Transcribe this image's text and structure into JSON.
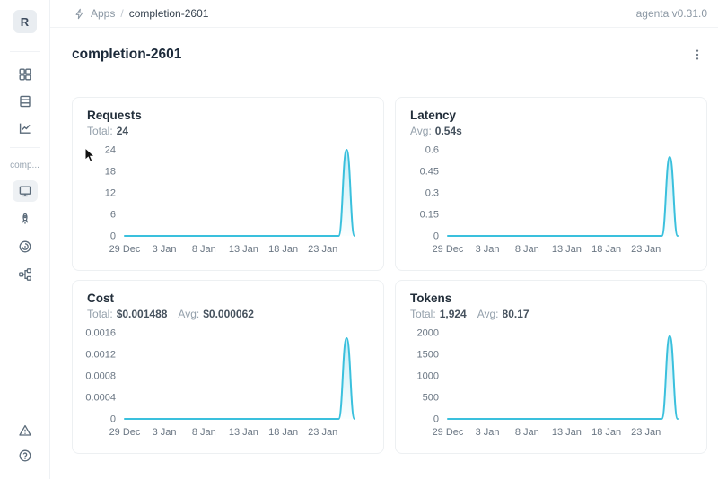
{
  "header": {
    "breadcrumb": {
      "icon": "flash-icon",
      "root": "Apps",
      "separator": "/",
      "current": "completion-2601"
    },
    "version": "agenta v0.31.0"
  },
  "sidebar": {
    "avatar_letter": "R",
    "section_label": "comp...",
    "top_icons": [
      "apps-grid-icon",
      "testsets-table-icon",
      "analytics-chart-icon"
    ],
    "app_icons": [
      "overview-monitor-icon",
      "deployment-rocket-icon",
      "observability-icon",
      "traces-tree-icon"
    ],
    "selected_icon": "overview-monitor-icon",
    "bottom_icons": [
      "alerts-warning-icon",
      "help-question-icon"
    ]
  },
  "page": {
    "title": "completion-2601",
    "menu_icon": "kebab-menu-icon"
  },
  "chart_data": {
    "type": "line",
    "line_color": "#3ac0dd",
    "x": [
      "29 Dec",
      "30 Dec",
      "31 Dec",
      "1 Jan",
      "2 Jan",
      "3 Jan",
      "4 Jan",
      "5 Jan",
      "6 Jan",
      "7 Jan",
      "8 Jan",
      "9 Jan",
      "10 Jan",
      "11 Jan",
      "12 Jan",
      "13 Jan",
      "14 Jan",
      "15 Jan",
      "16 Jan",
      "17 Jan",
      "18 Jan",
      "19 Jan",
      "20 Jan",
      "21 Jan",
      "22 Jan",
      "23 Jan",
      "24 Jan",
      "25 Jan",
      "26 Jan",
      "27 Jan"
    ],
    "xticks": {
      "labels": [
        "29 Dec",
        "3 Jan",
        "8 Jan",
        "13 Jan",
        "18 Jan",
        "23 Jan"
      ],
      "indices": [
        0,
        5,
        10,
        15,
        20,
        25
      ]
    },
    "grid": false,
    "legend": false,
    "charts": [
      {
        "key": "requests",
        "title": "Requests",
        "stats": [
          {
            "label": "Total:",
            "value": "24"
          }
        ],
        "yticks": [
          "0",
          "6",
          "12",
          "18",
          "24"
        ],
        "ylim": [
          0,
          24
        ],
        "values": [
          0,
          0,
          0,
          0,
          0,
          0,
          0,
          0,
          0,
          0,
          0,
          0,
          0,
          0,
          0,
          0,
          0,
          0,
          0,
          0,
          0,
          0,
          0,
          0,
          0,
          0,
          0,
          0,
          24,
          0
        ]
      },
      {
        "key": "latency",
        "title": "Latency",
        "stats": [
          {
            "label": "Avg:",
            "value": "0.54s"
          }
        ],
        "yticks": [
          "0",
          "0.15",
          "0.3",
          "0.45",
          "0.6"
        ],
        "ylim": [
          0,
          0.6
        ],
        "values": [
          0,
          0,
          0,
          0,
          0,
          0,
          0,
          0,
          0,
          0,
          0,
          0,
          0,
          0,
          0,
          0,
          0,
          0,
          0,
          0,
          0,
          0,
          0,
          0,
          0,
          0,
          0,
          0,
          0.55,
          0
        ]
      },
      {
        "key": "cost",
        "title": "Cost",
        "stats": [
          {
            "label": "Total:",
            "value": "$0.001488"
          },
          {
            "label": "Avg:",
            "value": "$0.000062"
          }
        ],
        "yticks": [
          "0",
          "0.0004",
          "0.0008",
          "0.0012",
          "0.0016"
        ],
        "ylim": [
          0,
          0.0016
        ],
        "values": [
          0,
          0,
          0,
          0,
          0,
          0,
          0,
          0,
          0,
          0,
          0,
          0,
          0,
          0,
          0,
          0,
          0,
          0,
          0,
          0,
          0,
          0,
          0,
          0,
          0,
          0,
          0,
          0,
          0.0015,
          0
        ]
      },
      {
        "key": "tokens",
        "title": "Tokens",
        "stats": [
          {
            "label": "Total:",
            "value": "1,924"
          },
          {
            "label": "Avg:",
            "value": "80.17"
          }
        ],
        "yticks": [
          "0",
          "500",
          "1000",
          "1500",
          "2000"
        ],
        "ylim": [
          0,
          2000
        ],
        "values": [
          0,
          0,
          0,
          0,
          0,
          0,
          0,
          0,
          0,
          0,
          0,
          0,
          0,
          0,
          0,
          0,
          0,
          0,
          0,
          0,
          0,
          0,
          0,
          0,
          0,
          0,
          0,
          0,
          1924,
          0
        ]
      }
    ]
  }
}
